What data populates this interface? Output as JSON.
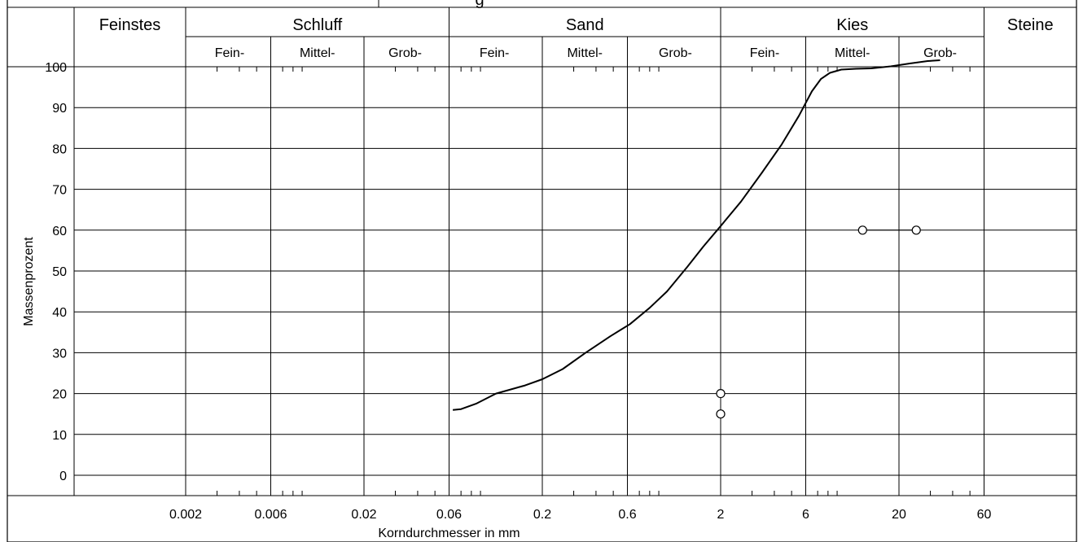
{
  "chart_data": {
    "type": "line",
    "title": "",
    "xlabel": "Korndurchmesser in mm",
    "ylabel": "Massenprozent",
    "x_scale": "log",
    "xlim": [
      0.0006,
      60
    ],
    "ylim": [
      0,
      100
    ],
    "grid": true,
    "groups": [
      {
        "label": "Feinstes",
        "sub": []
      },
      {
        "label": "Schluff",
        "sub": [
          "Fein-",
          "Mittel-",
          "Grob-"
        ]
      },
      {
        "label": "Sand",
        "sub": [
          "Fein-",
          "Mittel-",
          "Grob-"
        ]
      },
      {
        "label": "Kies",
        "sub": [
          "Fein-",
          "Mittel-",
          "Grob-"
        ]
      },
      {
        "label": "Steine",
        "sub": []
      }
    ],
    "x_ticks": [
      {
        "value": 0.002,
        "label": "0.002"
      },
      {
        "value": 0.006,
        "label": "0.006"
      },
      {
        "value": 0.02,
        "label": "0.02"
      },
      {
        "value": 0.06,
        "label": "0.06"
      },
      {
        "value": 0.2,
        "label": "0.2"
      },
      {
        "value": 0.6,
        "label": "0.6"
      },
      {
        "value": 2,
        "label": "2"
      },
      {
        "value": 6,
        "label": "6"
      },
      {
        "value": 20,
        "label": "20"
      },
      {
        "value": 60,
        "label": "60"
      }
    ],
    "y_ticks": [
      0,
      10,
      20,
      30,
      40,
      50,
      60,
      70,
      80,
      90,
      100
    ],
    "series": [
      {
        "x": [
          0.063,
          0.07,
          0.085,
          0.11,
          0.16,
          0.2,
          0.26,
          0.35,
          0.48,
          0.62,
          0.8,
          1.0,
          1.3,
          1.6,
          2.0,
          2.6,
          3.4,
          4.4,
          5.5,
          6.5,
          7.3,
          8.2,
          9.5,
          11.5,
          14,
          18,
          23,
          29,
          34
        ],
        "y": [
          16,
          16.2,
          17.5,
          20,
          22,
          23.5,
          26,
          30,
          34,
          37,
          41,
          45,
          51,
          56,
          61,
          67,
          74,
          81,
          88,
          94,
          97,
          98.5,
          99.3,
          99.5,
          99.6,
          100.1,
          100.8,
          101.4,
          101.6
        ]
      }
    ],
    "markers": [
      {
        "x": 12.5,
        "y": 60
      },
      {
        "x": 25,
        "y": 60
      },
      {
        "x": 2,
        "y": 20
      },
      {
        "x": 2,
        "y": 15
      }
    ],
    "marker_links": [
      {
        "x1": 12.5,
        "y1": 60,
        "x2": 25,
        "y2": 60
      },
      {
        "x1": 2,
        "y1": 20,
        "x2": 2,
        "y2": 15
      }
    ],
    "header_partial_text": "g"
  }
}
